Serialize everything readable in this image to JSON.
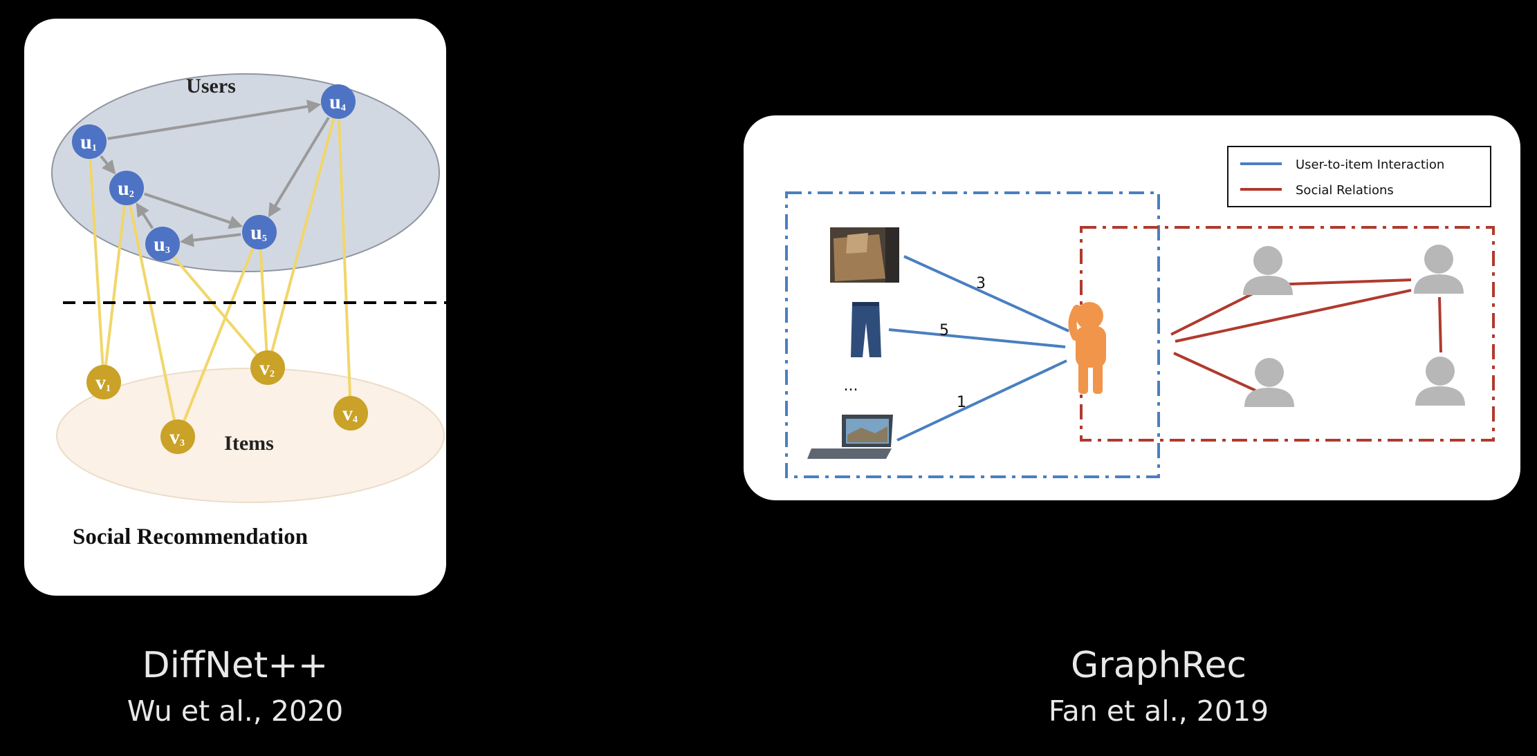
{
  "left_figure": {
    "users_label": "Users",
    "items_label": "Items",
    "caption_text": "Social Recommendation",
    "users": [
      {
        "id": "u1",
        "letter": "u",
        "sub": "1"
      },
      {
        "id": "u2",
        "letter": "u",
        "sub": "2"
      },
      {
        "id": "u3",
        "letter": "u",
        "sub": "3"
      },
      {
        "id": "u4",
        "letter": "u",
        "sub": "4"
      },
      {
        "id": "u5",
        "letter": "u",
        "sub": "5"
      }
    ],
    "items": [
      {
        "id": "v1",
        "letter": "v",
        "sub": "1"
      },
      {
        "id": "v2",
        "letter": "v",
        "sub": "2"
      },
      {
        "id": "v3",
        "letter": "v",
        "sub": "3"
      },
      {
        "id": "v4",
        "letter": "v",
        "sub": "4"
      }
    ],
    "social_edges": [
      [
        "u1",
        "u4"
      ],
      [
        "u1",
        "u2"
      ],
      [
        "u2",
        "u5"
      ],
      [
        "u4",
        "u5"
      ],
      [
        "u3",
        "u2"
      ],
      [
        "u5",
        "u3"
      ]
    ],
    "interaction_edges": [
      [
        "u1",
        "v1"
      ],
      [
        "u2",
        "v1"
      ],
      [
        "u2",
        "v3"
      ],
      [
        "u5",
        "v3"
      ],
      [
        "u3",
        "v2"
      ],
      [
        "u5",
        "v2"
      ],
      [
        "u4",
        "v2"
      ],
      [
        "u4",
        "v4"
      ]
    ],
    "colors": {
      "user_node": "#4e73c4",
      "item_node": "#c9a227",
      "social_edge": "#9a9a9a",
      "interaction_edge": "#f1d66a",
      "users_ellipse": "#d2d8e2",
      "items_ellipse": "#fbf1e6"
    }
  },
  "right_figure": {
    "legend": [
      {
        "label": "User-to-item Interaction",
        "color": "#4a7fc0"
      },
      {
        "label": "Social Relations",
        "color": "#b03a2e"
      }
    ],
    "edge_ratings": [
      "3",
      "5",
      "1"
    ],
    "ellipsis": "...",
    "item_icons": [
      "bag-icon",
      "jeans-icon",
      "laptop-icon"
    ],
    "colors": {
      "interaction": "#4a7fc0",
      "social": "#b03a2e",
      "user": "#f0954a",
      "friend": "#b7b7b7"
    }
  },
  "captions": [
    {
      "title": "DiffNet++",
      "subtitle": "Wu et al., 2020"
    },
    {
      "title": "GraphRec",
      "subtitle": "Fan et al., 2019"
    }
  ]
}
